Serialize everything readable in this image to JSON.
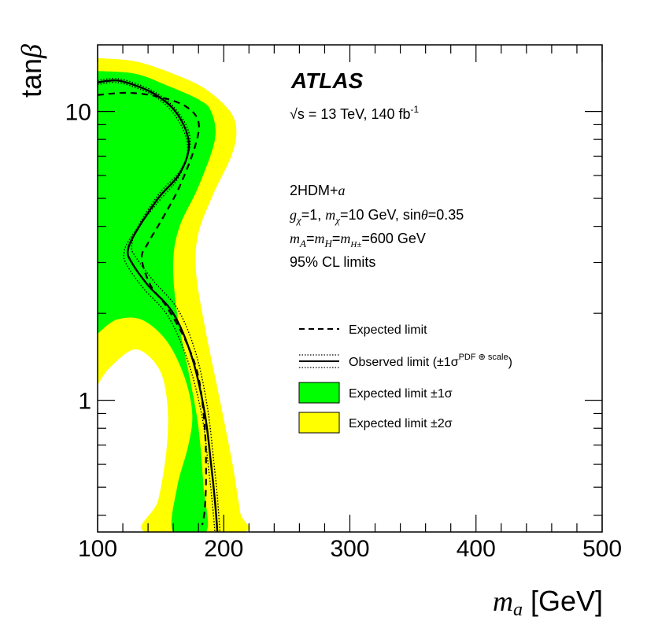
{
  "chart_data": {
    "type": "area",
    "xlabel_var": "m",
    "xlabel_sub": "a",
    "xlabel_unit": "[GeV]",
    "ylabel_pre": "tan",
    "ylabel_sym": "β",
    "xlim": [
      100,
      500
    ],
    "ylim": [
      0.35,
      17
    ],
    "y_scale": "log",
    "x_ticks": [
      100,
      200,
      300,
      400,
      500
    ],
    "x_tick_labels": [
      "100",
      "200",
      "300",
      "400",
      "500"
    ],
    "y_ticks": [
      1,
      10
    ],
    "y_tick_labels": [
      "1",
      "10"
    ],
    "annotations": {
      "experiment": "ATLAS",
      "sqrt_s_symbol": "√s",
      "energy_lumi": " = 13 TeV, 140 fb",
      "lumi_exp": "-1",
      "model": "2HDM+",
      "model_it": "a",
      "params_1": "g",
      "params_1_sub": "χ",
      "params_2": "=1, ",
      "params_3": "m",
      "params_3_sub": "χ",
      "params_4": "=10 GeV, sin",
      "params_5": "θ",
      "params_6": "=0.35",
      "mass_1": "m",
      "mass_1_sub": "A",
      "mass_2": "=",
      "mass_3": "m",
      "mass_3_sub": "H",
      "mass_4": "=",
      "mass_5": "m",
      "mass_5_sub": "H±",
      "mass_6": "=600 GeV",
      "cl": "95% CL limits"
    },
    "legend": {
      "position": "lower-right",
      "entries": [
        {
          "label": "Expected limit",
          "style": "dashed"
        },
        {
          "label": "Observed limit (±1σ",
          "label_sup": "PDF ⊕ scale",
          "label_end": ")",
          "style": "solid+dotted"
        },
        {
          "label": "Expected limit ±1σ",
          "style": "fill",
          "color": "#00ff00"
        },
        {
          "label": "Expected limit ±2σ",
          "style": "fill",
          "color": "#ffff00"
        }
      ]
    },
    "colors": {
      "one_sigma": "#00ff00",
      "two_sigma": "#ffff00",
      "line": "#000000"
    },
    "two_sigma_band": [
      [
        100,
        15.3
      ],
      [
        130,
        14.9
      ],
      [
        160,
        13.5
      ],
      [
        185,
        12.0
      ],
      [
        205,
        10.0
      ],
      [
        210,
        8.5
      ],
      [
        206,
        7.0
      ],
      [
        192,
        5.2
      ],
      [
        180,
        3.8
      ],
      [
        178,
        2.8
      ],
      [
        185,
        1.8
      ],
      [
        197,
        1.0
      ],
      [
        207,
        0.6
      ],
      [
        213,
        0.41
      ],
      [
        215,
        0.35
      ],
      [
        138,
        0.35
      ],
      [
        148,
        0.45
      ],
      [
        155,
        0.7
      ],
      [
        155,
        1.0
      ],
      [
        148,
        1.3
      ],
      [
        130,
        1.5
      ],
      [
        110,
        1.3
      ],
      [
        100,
        1.13
      ]
    ],
    "one_sigma_band": [
      [
        100,
        13.8
      ],
      [
        130,
        13.5
      ],
      [
        155,
        12.3
      ],
      [
        180,
        11.0
      ],
      [
        190,
        10.0
      ],
      [
        193,
        8.0
      ],
      [
        180,
        5.5
      ],
      [
        165,
        4.0
      ],
      [
        160,
        3.0
      ],
      [
        163,
        2.0
      ],
      [
        173,
        1.2
      ],
      [
        180,
        0.8
      ],
      [
        184,
        0.5
      ],
      [
        186,
        0.35
      ],
      [
        160,
        0.35
      ],
      [
        163,
        0.5
      ],
      [
        172,
        0.7
      ],
      [
        175,
        0.9
      ],
      [
        169,
        1.2
      ],
      [
        155,
        1.6
      ],
      [
        135,
        1.9
      ],
      [
        115,
        1.9
      ],
      [
        100,
        1.7
      ]
    ],
    "expected": [
      [
        100,
        11.4
      ],
      [
        125,
        11.6
      ],
      [
        150,
        11.2
      ],
      [
        170,
        10.4
      ],
      [
        180,
        9.2
      ],
      [
        177,
        7.5
      ],
      [
        165,
        5.5
      ],
      [
        152,
        4.3
      ],
      [
        140,
        3.5
      ],
      [
        135,
        3.1
      ],
      [
        142,
        2.5
      ],
      [
        155,
        2.1
      ],
      [
        170,
        1.6
      ],
      [
        180,
        1.2
      ],
      [
        185,
        0.8
      ],
      [
        186,
        0.55
      ],
      [
        185,
        0.42
      ],
      [
        183,
        0.37
      ]
    ],
    "observed": [
      [
        100,
        12.6
      ],
      [
        115,
        12.8
      ],
      [
        130,
        12.3
      ],
      [
        145,
        11.5
      ],
      [
        160,
        10.2
      ],
      [
        170,
        8.6
      ],
      [
        172,
        7.3
      ],
      [
        164,
        6.0
      ],
      [
        148,
        5.0
      ],
      [
        130,
        3.8
      ],
      [
        124,
        3.3
      ],
      [
        127,
        3.0
      ],
      [
        140,
        2.5
      ],
      [
        160,
        2.0
      ],
      [
        175,
        1.4
      ],
      [
        185,
        0.9
      ],
      [
        190,
        0.6
      ],
      [
        193,
        0.45
      ],
      [
        195,
        0.35
      ]
    ],
    "observed_up": [
      [
        100,
        12.8
      ],
      [
        115,
        13.0
      ],
      [
        130,
        12.5
      ],
      [
        145,
        11.7
      ],
      [
        160,
        10.4
      ],
      [
        171,
        8.8
      ],
      [
        173,
        7.5
      ],
      [
        165,
        6.2
      ],
      [
        149,
        5.2
      ],
      [
        132,
        4.0
      ],
      [
        127,
        3.4
      ],
      [
        131,
        3.1
      ],
      [
        144,
        2.6
      ],
      [
        164,
        2.05
      ],
      [
        178,
        1.45
      ],
      [
        187,
        0.95
      ],
      [
        192,
        0.62
      ],
      [
        195,
        0.46
      ],
      [
        197,
        0.35
      ]
    ],
    "observed_down": [
      [
        100,
        12.4
      ],
      [
        115,
        12.6
      ],
      [
        130,
        12.1
      ],
      [
        145,
        11.3
      ],
      [
        159,
        10.0
      ],
      [
        169,
        8.4
      ],
      [
        171,
        7.1
      ],
      [
        163,
        5.8
      ],
      [
        147,
        4.8
      ],
      [
        127,
        3.7
      ],
      [
        121,
        3.25
      ],
      [
        123,
        2.95
      ],
      [
        136,
        2.45
      ],
      [
        156,
        1.95
      ],
      [
        172,
        1.35
      ],
      [
        183,
        0.87
      ],
      [
        188,
        0.58
      ],
      [
        191,
        0.44
      ],
      [
        193,
        0.35
      ]
    ]
  }
}
